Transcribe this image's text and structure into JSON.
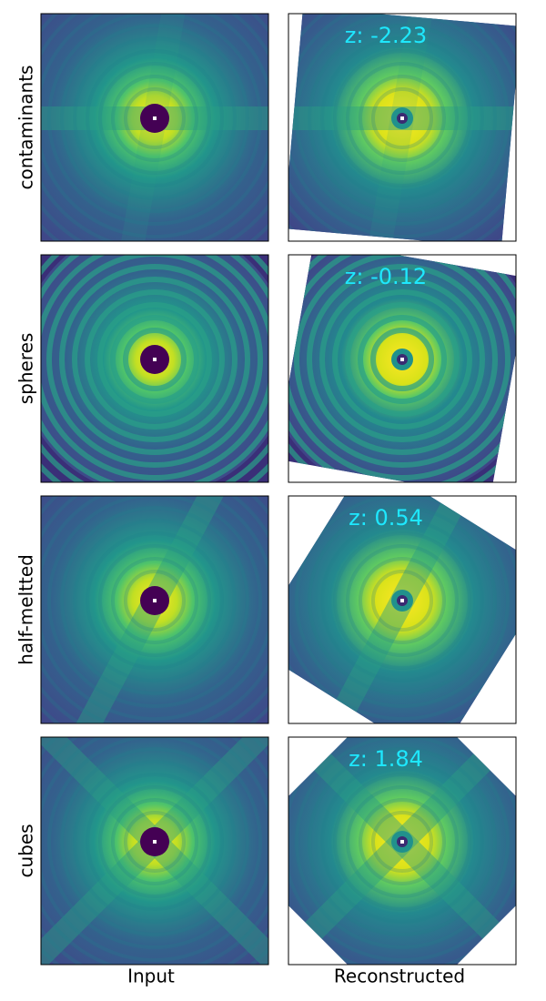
{
  "columns": [
    "Input",
    "Reconstructed"
  ],
  "rows": [
    {
      "label": "contaminants",
      "z": "z: -2.23"
    },
    {
      "label": "spheres",
      "z": "z: -0.12"
    },
    {
      "label": "half-meltted",
      "z": "z: 0.54"
    },
    {
      "label": "cubes",
      "z": "z: 1.84"
    }
  ]
}
